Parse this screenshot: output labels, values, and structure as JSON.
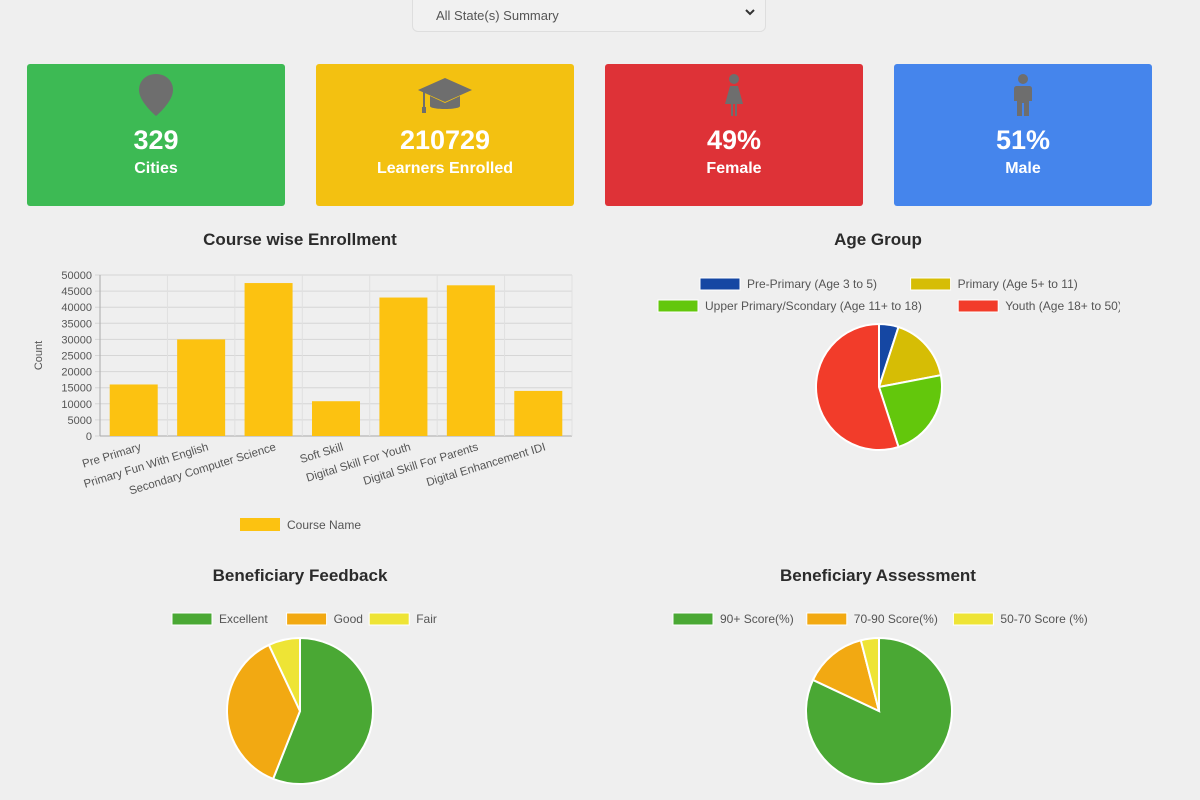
{
  "filter": {
    "selected": "All State(s) Summary"
  },
  "cards": [
    {
      "value": "329",
      "label": "Cities",
      "color": "#3dba54",
      "icon": "map-pin-icon"
    },
    {
      "value": "210729",
      "label": "Learners Enrolled",
      "color": "#f3c111",
      "icon": "graduation-cap-icon"
    },
    {
      "value": "49%",
      "label": "Female",
      "color": "#de3237",
      "icon": "female-icon"
    },
    {
      "value": "51%",
      "label": "Male",
      "color": "#4585ec",
      "icon": "male-icon"
    }
  ],
  "chart_data": [
    {
      "type": "bar",
      "title": "Course wise Enrollment",
      "ylabel": "Count",
      "ylim": [
        0,
        50000
      ],
      "yticks": [
        "0",
        "5000",
        "10000",
        "15000",
        "20000",
        "25000",
        "30000",
        "35000",
        "40000",
        "45000",
        "50000"
      ],
      "categories": [
        "Pre Primary",
        "Primary Fun With English",
        "Secondary Computer Science",
        "Soft Skill",
        "Digital Skill For Youth",
        "Digital Skill For Parents",
        "Digital Enhancement IDI"
      ],
      "values": [
        16000,
        30000,
        47500,
        10800,
        43000,
        46800,
        14000
      ],
      "legend": "Course Name",
      "color": "#fcc211"
    },
    {
      "type": "pie",
      "title": "Age Group",
      "labels": [
        "Pre-Primary (Age 3 to 5)",
        "Primary (Age 5+ to 11)",
        "Upper Primary/Scondary (Age 11+ to 18)",
        "Youth (Age 18+ to 50)"
      ],
      "values": [
        5,
        17,
        23,
        55
      ],
      "colors": [
        "#1547a3",
        "#d6bd05",
        "#63c70c",
        "#f23c2a"
      ]
    },
    {
      "type": "pie",
      "title": "Beneficiary Feedback",
      "labels": [
        "Excellent",
        "Good",
        "Fair"
      ],
      "values": [
        56,
        37,
        7
      ],
      "colors": [
        "#4aa834",
        "#f2a912",
        "#eee435"
      ]
    },
    {
      "type": "pie",
      "title": "Beneficiary Assessment",
      "labels": [
        "90+ Score(%)",
        "70-90 Score(%)",
        "50-70 Score (%)"
      ],
      "values": [
        82,
        14,
        4
      ],
      "colors": [
        "#4aa834",
        "#f2a912",
        "#eee435"
      ]
    }
  ]
}
